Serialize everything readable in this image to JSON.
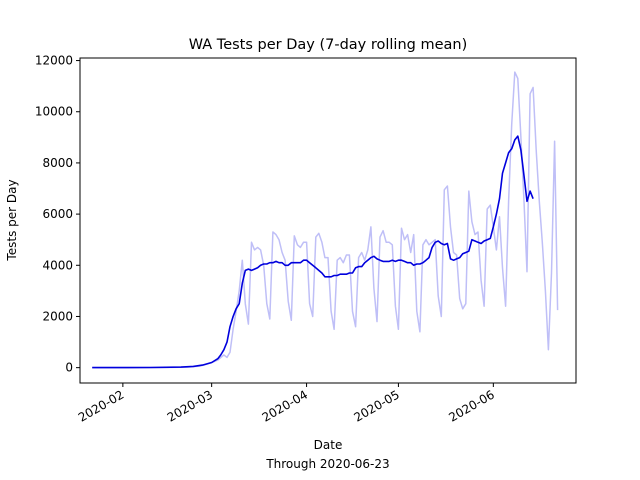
{
  "chart_data": {
    "type": "line",
    "title": "WA Tests per Day (7-day rolling mean)",
    "xlabel": "Date",
    "xlabel_sub": "Through 2020-06-23",
    "ylabel": "Tests per Day",
    "x_ticks": [
      "2020-02",
      "2020-03",
      "2020-04",
      "2020-05",
      "2020-06"
    ],
    "y_ticks": [
      0,
      2000,
      4000,
      6000,
      8000,
      10000,
      12000
    ],
    "xlim": [
      "2020-01-18",
      "2020-06-28"
    ],
    "ylim": [
      -600,
      12100
    ],
    "grid": false,
    "colors": {
      "daily": "#bfbff7",
      "rolling": "#0000dd"
    },
    "series": [
      {
        "role": "daily",
        "points": [
          [
            "2020-01-22",
            0
          ],
          [
            "2020-02-01",
            0
          ],
          [
            "2020-02-15",
            5
          ],
          [
            "2020-02-22",
            20
          ],
          [
            "2020-02-26",
            60
          ],
          [
            "2020-02-28",
            120
          ],
          [
            "2020-03-01",
            200
          ],
          [
            "2020-03-03",
            300
          ],
          [
            "2020-03-05",
            500
          ],
          [
            "2020-03-06",
            400
          ],
          [
            "2020-03-07",
            600
          ],
          [
            "2020-03-08",
            1500
          ],
          [
            "2020-03-09",
            2200
          ],
          [
            "2020-03-10",
            3000
          ],
          [
            "2020-03-11",
            4200
          ],
          [
            "2020-03-12",
            2500
          ],
          [
            "2020-03-13",
            1700
          ],
          [
            "2020-03-14",
            4900
          ],
          [
            "2020-03-15",
            4600
          ],
          [
            "2020-03-16",
            4700
          ],
          [
            "2020-03-17",
            4600
          ],
          [
            "2020-03-18",
            4000
          ],
          [
            "2020-03-19",
            2500
          ],
          [
            "2020-03-20",
            1900
          ],
          [
            "2020-03-21",
            5300
          ],
          [
            "2020-03-22",
            5200
          ],
          [
            "2020-03-23",
            5000
          ],
          [
            "2020-03-24",
            4500
          ],
          [
            "2020-03-25",
            4200
          ],
          [
            "2020-03-26",
            2600
          ],
          [
            "2020-03-27",
            1850
          ],
          [
            "2020-03-28",
            5150
          ],
          [
            "2020-03-29",
            4800
          ],
          [
            "2020-03-30",
            4700
          ],
          [
            "2020-03-31",
            4900
          ],
          [
            "2020-04-01",
            4900
          ],
          [
            "2020-04-02",
            2500
          ],
          [
            "2020-04-03",
            2000
          ],
          [
            "2020-04-04",
            5100
          ],
          [
            "2020-04-05",
            5250
          ],
          [
            "2020-04-06",
            4900
          ],
          [
            "2020-04-07",
            4300
          ],
          [
            "2020-04-08",
            4300
          ],
          [
            "2020-04-09",
            2200
          ],
          [
            "2020-04-10",
            1500
          ],
          [
            "2020-04-11",
            4200
          ],
          [
            "2020-04-12",
            4300
          ],
          [
            "2020-04-13",
            4100
          ],
          [
            "2020-04-14",
            4400
          ],
          [
            "2020-04-15",
            4400
          ],
          [
            "2020-04-16",
            2200
          ],
          [
            "2020-04-17",
            1600
          ],
          [
            "2020-04-18",
            4300
          ],
          [
            "2020-04-19",
            4500
          ],
          [
            "2020-04-20",
            4200
          ],
          [
            "2020-04-21",
            4600
          ],
          [
            "2020-04-22",
            5500
          ],
          [
            "2020-04-23",
            3100
          ],
          [
            "2020-04-24",
            1800
          ],
          [
            "2020-04-25",
            5100
          ],
          [
            "2020-04-26",
            5350
          ],
          [
            "2020-04-27",
            4900
          ],
          [
            "2020-04-28",
            4900
          ],
          [
            "2020-04-29",
            4800
          ],
          [
            "2020-04-30",
            2400
          ],
          [
            "2020-05-01",
            1500
          ],
          [
            "2020-05-02",
            5450
          ],
          [
            "2020-05-03",
            5000
          ],
          [
            "2020-05-04",
            5200
          ],
          [
            "2020-05-05",
            4500
          ],
          [
            "2020-05-06",
            5200
          ],
          [
            "2020-05-07",
            2200
          ],
          [
            "2020-05-08",
            1400
          ],
          [
            "2020-05-09",
            4800
          ],
          [
            "2020-05-10",
            5000
          ],
          [
            "2020-05-11",
            4800
          ],
          [
            "2020-05-12",
            4900
          ],
          [
            "2020-05-13",
            5000
          ],
          [
            "2020-05-14",
            2800
          ],
          [
            "2020-05-15",
            2000
          ],
          [
            "2020-05-16",
            6950
          ],
          [
            "2020-05-17",
            7100
          ],
          [
            "2020-05-18",
            5500
          ],
          [
            "2020-05-19",
            4500
          ],
          [
            "2020-05-20",
            4400
          ],
          [
            "2020-05-21",
            2700
          ],
          [
            "2020-05-22",
            2300
          ],
          [
            "2020-05-23",
            2500
          ],
          [
            "2020-05-24",
            6900
          ],
          [
            "2020-05-25",
            5700
          ],
          [
            "2020-05-26",
            5200
          ],
          [
            "2020-05-27",
            5300
          ],
          [
            "2020-05-28",
            3400
          ],
          [
            "2020-05-29",
            2400
          ],
          [
            "2020-05-30",
            6200
          ],
          [
            "2020-05-31",
            6350
          ],
          [
            "2020-06-01",
            5500
          ],
          [
            "2020-06-02",
            4600
          ],
          [
            "2020-06-03",
            5900
          ],
          [
            "2020-06-04",
            3900
          ],
          [
            "2020-06-05",
            2400
          ],
          [
            "2020-06-06",
            6500
          ],
          [
            "2020-06-07",
            9500
          ],
          [
            "2020-06-08",
            11550
          ],
          [
            "2020-06-09",
            11300
          ],
          [
            "2020-06-10",
            9000
          ],
          [
            "2020-06-11",
            6500
          ],
          [
            "2020-06-12",
            3750
          ],
          [
            "2020-06-13",
            10700
          ],
          [
            "2020-06-14",
            10950
          ],
          [
            "2020-06-15",
            8500
          ],
          [
            "2020-06-16",
            6500
          ],
          [
            "2020-06-17",
            4900
          ],
          [
            "2020-06-18",
            3000
          ],
          [
            "2020-06-19",
            700
          ],
          [
            "2020-06-20",
            3700
          ],
          [
            "2020-06-21",
            8850
          ],
          [
            "2020-06-22",
            2250
          ]
        ]
      },
      {
        "role": "rolling",
        "points": [
          [
            "2020-01-22",
            0
          ],
          [
            "2020-02-10",
            5
          ],
          [
            "2020-02-20",
            20
          ],
          [
            "2020-02-24",
            50
          ],
          [
            "2020-02-27",
            100
          ],
          [
            "2020-03-01",
            200
          ],
          [
            "2020-03-03",
            350
          ],
          [
            "2020-03-04",
            500
          ],
          [
            "2020-03-05",
            700
          ],
          [
            "2020-03-06",
            1000
          ],
          [
            "2020-03-07",
            1600
          ],
          [
            "2020-03-08",
            2000
          ],
          [
            "2020-03-09",
            2300
          ],
          [
            "2020-03-10",
            2500
          ],
          [
            "2020-03-11",
            3300
          ],
          [
            "2020-03-12",
            3800
          ],
          [
            "2020-03-13",
            3850
          ],
          [
            "2020-03-14",
            3800
          ],
          [
            "2020-03-15",
            3850
          ],
          [
            "2020-03-16",
            3900
          ],
          [
            "2020-03-17",
            4000
          ],
          [
            "2020-03-18",
            4050
          ],
          [
            "2020-03-19",
            4050
          ],
          [
            "2020-03-20",
            4100
          ],
          [
            "2020-03-21",
            4100
          ],
          [
            "2020-03-22",
            4150
          ],
          [
            "2020-03-23",
            4100
          ],
          [
            "2020-03-24",
            4100
          ],
          [
            "2020-03-25",
            4000
          ],
          [
            "2020-03-26",
            4000
          ],
          [
            "2020-03-27",
            4100
          ],
          [
            "2020-03-28",
            4100
          ],
          [
            "2020-03-29",
            4100
          ],
          [
            "2020-03-30",
            4100
          ],
          [
            "2020-03-31",
            4200
          ],
          [
            "2020-04-01",
            4200
          ],
          [
            "2020-04-02",
            4100
          ],
          [
            "2020-04-03",
            4000
          ],
          [
            "2020-04-04",
            3900
          ],
          [
            "2020-04-05",
            3800
          ],
          [
            "2020-04-06",
            3700
          ],
          [
            "2020-04-07",
            3550
          ],
          [
            "2020-04-08",
            3550
          ],
          [
            "2020-04-09",
            3550
          ],
          [
            "2020-04-10",
            3600
          ],
          [
            "2020-04-11",
            3600
          ],
          [
            "2020-04-12",
            3650
          ],
          [
            "2020-04-13",
            3650
          ],
          [
            "2020-04-14",
            3650
          ],
          [
            "2020-04-15",
            3700
          ],
          [
            "2020-04-16",
            3700
          ],
          [
            "2020-04-17",
            3900
          ],
          [
            "2020-04-18",
            3950
          ],
          [
            "2020-04-19",
            3950
          ],
          [
            "2020-04-20",
            4100
          ],
          [
            "2020-04-21",
            4200
          ],
          [
            "2020-04-22",
            4300
          ],
          [
            "2020-04-23",
            4350
          ],
          [
            "2020-04-24",
            4250
          ],
          [
            "2020-04-25",
            4200
          ],
          [
            "2020-04-26",
            4150
          ],
          [
            "2020-04-27",
            4150
          ],
          [
            "2020-04-28",
            4150
          ],
          [
            "2020-04-29",
            4200
          ],
          [
            "2020-04-30",
            4150
          ],
          [
            "2020-05-01",
            4200
          ],
          [
            "2020-05-02",
            4200
          ],
          [
            "2020-05-03",
            4150
          ],
          [
            "2020-05-04",
            4100
          ],
          [
            "2020-05-05",
            4100
          ],
          [
            "2020-05-06",
            4000
          ],
          [
            "2020-05-07",
            4050
          ],
          [
            "2020-05-08",
            4050
          ],
          [
            "2020-05-09",
            4100
          ],
          [
            "2020-05-10",
            4200
          ],
          [
            "2020-05-11",
            4300
          ],
          [
            "2020-05-12",
            4700
          ],
          [
            "2020-05-13",
            4900
          ],
          [
            "2020-05-14",
            4950
          ],
          [
            "2020-05-15",
            4850
          ],
          [
            "2020-05-16",
            4800
          ],
          [
            "2020-05-17",
            4850
          ],
          [
            "2020-05-18",
            4250
          ],
          [
            "2020-05-19",
            4200
          ],
          [
            "2020-05-20",
            4250
          ],
          [
            "2020-05-21",
            4300
          ],
          [
            "2020-05-22",
            4450
          ],
          [
            "2020-05-23",
            4500
          ],
          [
            "2020-05-24",
            4550
          ],
          [
            "2020-05-25",
            5000
          ],
          [
            "2020-05-26",
            4950
          ],
          [
            "2020-05-27",
            4900
          ],
          [
            "2020-05-28",
            4850
          ],
          [
            "2020-05-29",
            4950
          ],
          [
            "2020-05-30",
            5000
          ],
          [
            "2020-05-31",
            5050
          ],
          [
            "2020-06-01",
            5500
          ],
          [
            "2020-06-02",
            6000
          ],
          [
            "2020-06-03",
            6600
          ],
          [
            "2020-06-04",
            7600
          ],
          [
            "2020-06-05",
            8000
          ],
          [
            "2020-06-06",
            8400
          ],
          [
            "2020-06-07",
            8550
          ],
          [
            "2020-06-08",
            8900
          ],
          [
            "2020-06-09",
            9050
          ],
          [
            "2020-06-10",
            8500
          ],
          [
            "2020-06-11",
            7500
          ],
          [
            "2020-06-12",
            6500
          ],
          [
            "2020-06-13",
            6900
          ],
          [
            "2020-06-14",
            6600
          ]
        ]
      }
    ]
  }
}
